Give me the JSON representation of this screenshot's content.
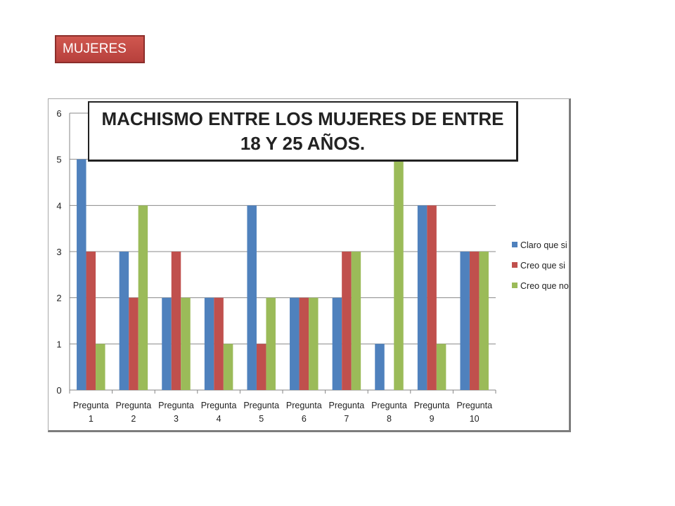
{
  "badge": {
    "label": "MUJERES"
  },
  "chart_data": {
    "type": "bar",
    "title_line1": "MACHISMO ENTRE LOS MUJERES DE ENTRE",
    "title_line2": "18 Y 25 AÑOS.",
    "categories": [
      [
        "Pregunta",
        "1"
      ],
      [
        "Pregunta",
        "2"
      ],
      [
        "Pregunta",
        "3"
      ],
      [
        "Pregunta",
        "4"
      ],
      [
        "Pregunta",
        "5"
      ],
      [
        "Pregunta",
        "6"
      ],
      [
        "Pregunta",
        "7"
      ],
      [
        "Pregunta",
        "8"
      ],
      [
        "Pregunta",
        "9"
      ],
      [
        "Pregunta",
        "10"
      ]
    ],
    "series": [
      {
        "name": "Claro que si",
        "color": "#4f81bd",
        "values": [
          5,
          3,
          2,
          2,
          4,
          2,
          2,
          1,
          4,
          3
        ]
      },
      {
        "name": "Creo que si",
        "color": "#c0504d",
        "values": [
          3,
          2,
          3,
          2,
          1,
          2,
          3,
          0,
          4,
          3
        ]
      },
      {
        "name": "Creo que no",
        "color": "#9bbb59",
        "values": [
          1,
          4,
          2,
          1,
          2,
          2,
          3,
          5,
          1,
          3
        ]
      }
    ],
    "ylim": [
      0,
      6
    ],
    "yticks": [
      0,
      1,
      2,
      3,
      4,
      5,
      6
    ],
    "grid": true,
    "legend_position": "right"
  }
}
